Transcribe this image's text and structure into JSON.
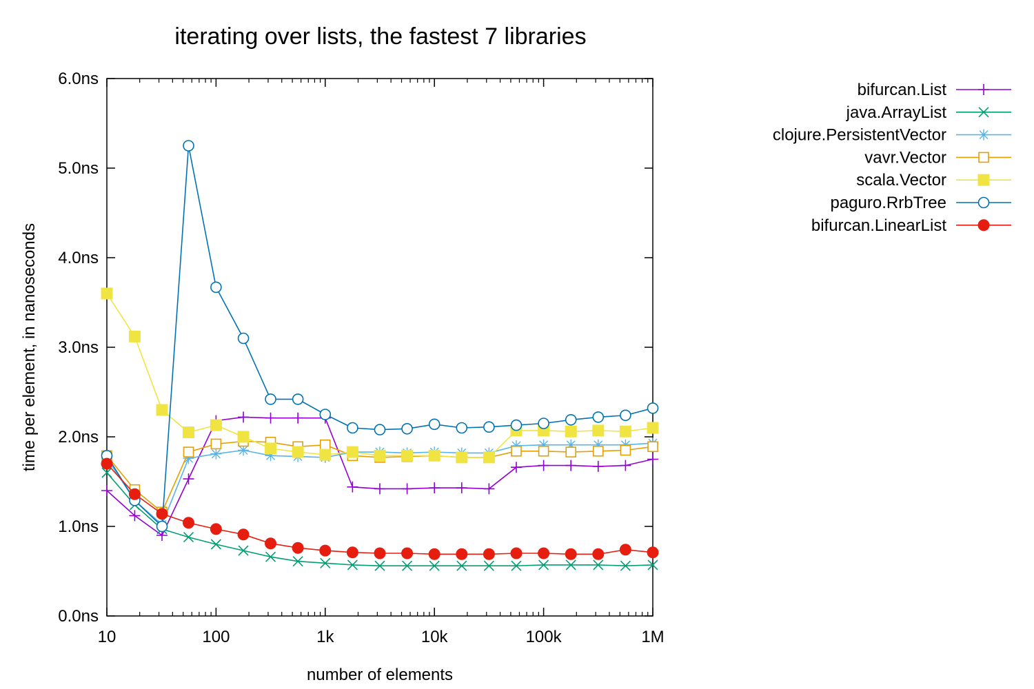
{
  "chart_data": {
    "type": "line",
    "title": "iterating over lists, the fastest 7 libraries",
    "xlabel": "number of elements",
    "ylabel": "time per element, in nanoseconds",
    "x_scale": "log",
    "xlim": [
      10,
      1000000
    ],
    "ylim": [
      0,
      6
    ],
    "grid": false,
    "legend_position": "outside-right",
    "x_ticks": [
      {
        "value": 10,
        "label": "10"
      },
      {
        "value": 100,
        "label": "100"
      },
      {
        "value": 1000,
        "label": "1k"
      },
      {
        "value": 10000,
        "label": "10k"
      },
      {
        "value": 100000,
        "label": "100k"
      },
      {
        "value": 1000000,
        "label": "1M"
      }
    ],
    "y_ticks": [
      {
        "value": 0,
        "label": "0.0ns"
      },
      {
        "value": 1,
        "label": "1.0ns"
      },
      {
        "value": 2,
        "label": "2.0ns"
      },
      {
        "value": 3,
        "label": "3.0ns"
      },
      {
        "value": 4,
        "label": "4.0ns"
      },
      {
        "value": 5,
        "label": "5.0ns"
      },
      {
        "value": 6,
        "label": "6.0ns"
      }
    ],
    "x": [
      10,
      18,
      32,
      56,
      100,
      178,
      316,
      562,
      1000,
      1778,
      3162,
      5623,
      10000,
      17783,
      31623,
      56234,
      100000,
      177828,
      316228,
      562341,
      1000000
    ],
    "series": [
      {
        "name": "bifurcan.List",
        "color": "#9400d3",
        "marker": "plus",
        "values": [
          1.4,
          1.12,
          0.9,
          1.53,
          2.18,
          2.22,
          2.21,
          2.21,
          2.21,
          1.44,
          1.42,
          1.42,
          1.43,
          1.43,
          1.42,
          1.66,
          1.68,
          1.68,
          1.67,
          1.68,
          1.75
        ]
      },
      {
        "name": "java.ArrayList",
        "color": "#009e73",
        "marker": "cross",
        "values": [
          1.6,
          1.24,
          0.97,
          0.88,
          0.8,
          0.73,
          0.66,
          0.61,
          0.59,
          0.57,
          0.56,
          0.56,
          0.56,
          0.56,
          0.56,
          0.56,
          0.57,
          0.57,
          0.57,
          0.56,
          0.57
        ]
      },
      {
        "name": "clojure.PersistentVector",
        "color": "#56b4e9",
        "marker": "star",
        "values": [
          1.76,
          1.29,
          1.02,
          1.76,
          1.81,
          1.85,
          1.79,
          1.78,
          1.77,
          1.83,
          1.83,
          1.82,
          1.83,
          1.82,
          1.82,
          1.9,
          1.91,
          1.91,
          1.91,
          1.91,
          1.93
        ]
      },
      {
        "name": "vavr.Vector",
        "color": "#e69f00",
        "marker": "open-square",
        "values": [
          1.79,
          1.41,
          1.16,
          1.83,
          1.92,
          1.95,
          1.94,
          1.89,
          1.91,
          1.79,
          1.77,
          1.78,
          1.79,
          1.77,
          1.77,
          1.84,
          1.84,
          1.83,
          1.84,
          1.85,
          1.89
        ]
      },
      {
        "name": "scala.Vector",
        "color": "#f0e442",
        "marker": "filled-square",
        "values": [
          3.6,
          3.12,
          2.3,
          2.05,
          2.13,
          2.0,
          1.87,
          1.83,
          1.8,
          1.83,
          1.79,
          1.79,
          1.79,
          1.77,
          1.77,
          2.07,
          2.07,
          2.06,
          2.07,
          2.06,
          2.1
        ]
      },
      {
        "name": "paguro.RrbTree",
        "color": "#0072b2",
        "marker": "open-circle",
        "values": [
          1.79,
          1.29,
          1.0,
          5.25,
          3.67,
          3.1,
          2.42,
          2.42,
          2.25,
          2.1,
          2.08,
          2.09,
          2.14,
          2.1,
          2.11,
          2.13,
          2.15,
          2.19,
          2.22,
          2.24,
          2.32
        ]
      },
      {
        "name": "bifurcan.LinearList",
        "color": "#e51e10",
        "marker": "filled-circle",
        "values": [
          1.7,
          1.36,
          1.14,
          1.04,
          0.97,
          0.91,
          0.81,
          0.76,
          0.73,
          0.71,
          0.7,
          0.7,
          0.69,
          0.69,
          0.69,
          0.7,
          0.7,
          0.69,
          0.69,
          0.74,
          0.71
        ]
      }
    ]
  }
}
